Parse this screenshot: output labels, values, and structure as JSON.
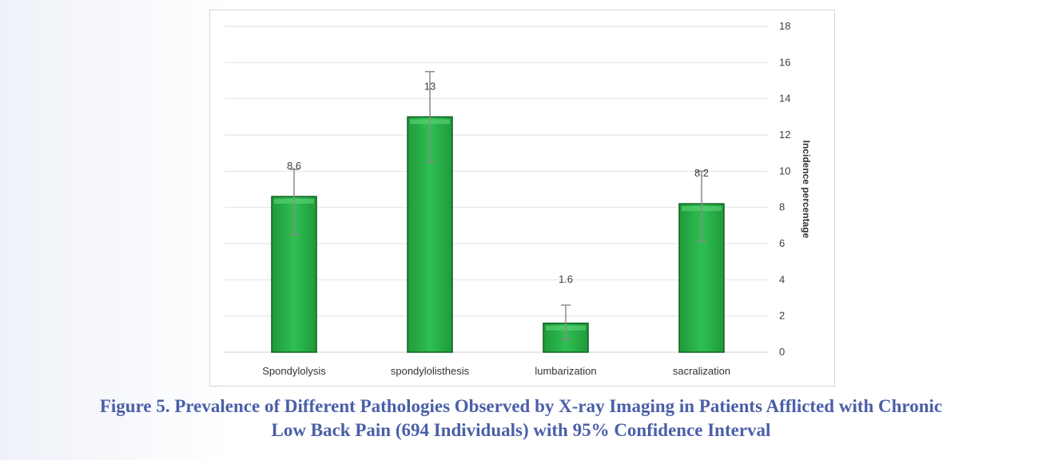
{
  "chart_data": {
    "type": "bar",
    "categories": [
      "Spondylolysis",
      "spondylolisthesis",
      "lumbarization",
      "sacralization"
    ],
    "values": [
      8.6,
      13,
      1.6,
      8.2
    ],
    "data_labels": [
      "8.6",
      "13",
      "1.6",
      "8.2"
    ],
    "error_bars": [
      {
        "low": 6.5,
        "high": 10.1
      },
      {
        "low": 10.5,
        "high": 15.5
      },
      {
        "low": 0.7,
        "high": 2.6
      },
      {
        "low": 6.1,
        "high": 10.0
      }
    ],
    "ylabel": "Incidence percentage",
    "ylim": [
      0,
      18
    ],
    "yticks": [
      0,
      2,
      4,
      6,
      8,
      10,
      12,
      14,
      16,
      18
    ],
    "y_axis_side": "right",
    "grid": true,
    "bar_color": "#2db34a"
  },
  "caption": {
    "line1": "Figure 5. Prevalence of Different Pathologies Observed by X-ray Imaging in Patients Afflicted with Chronic",
    "line2": "Low Back Pain (694 Individuals) with 95% Confidence Interval"
  }
}
